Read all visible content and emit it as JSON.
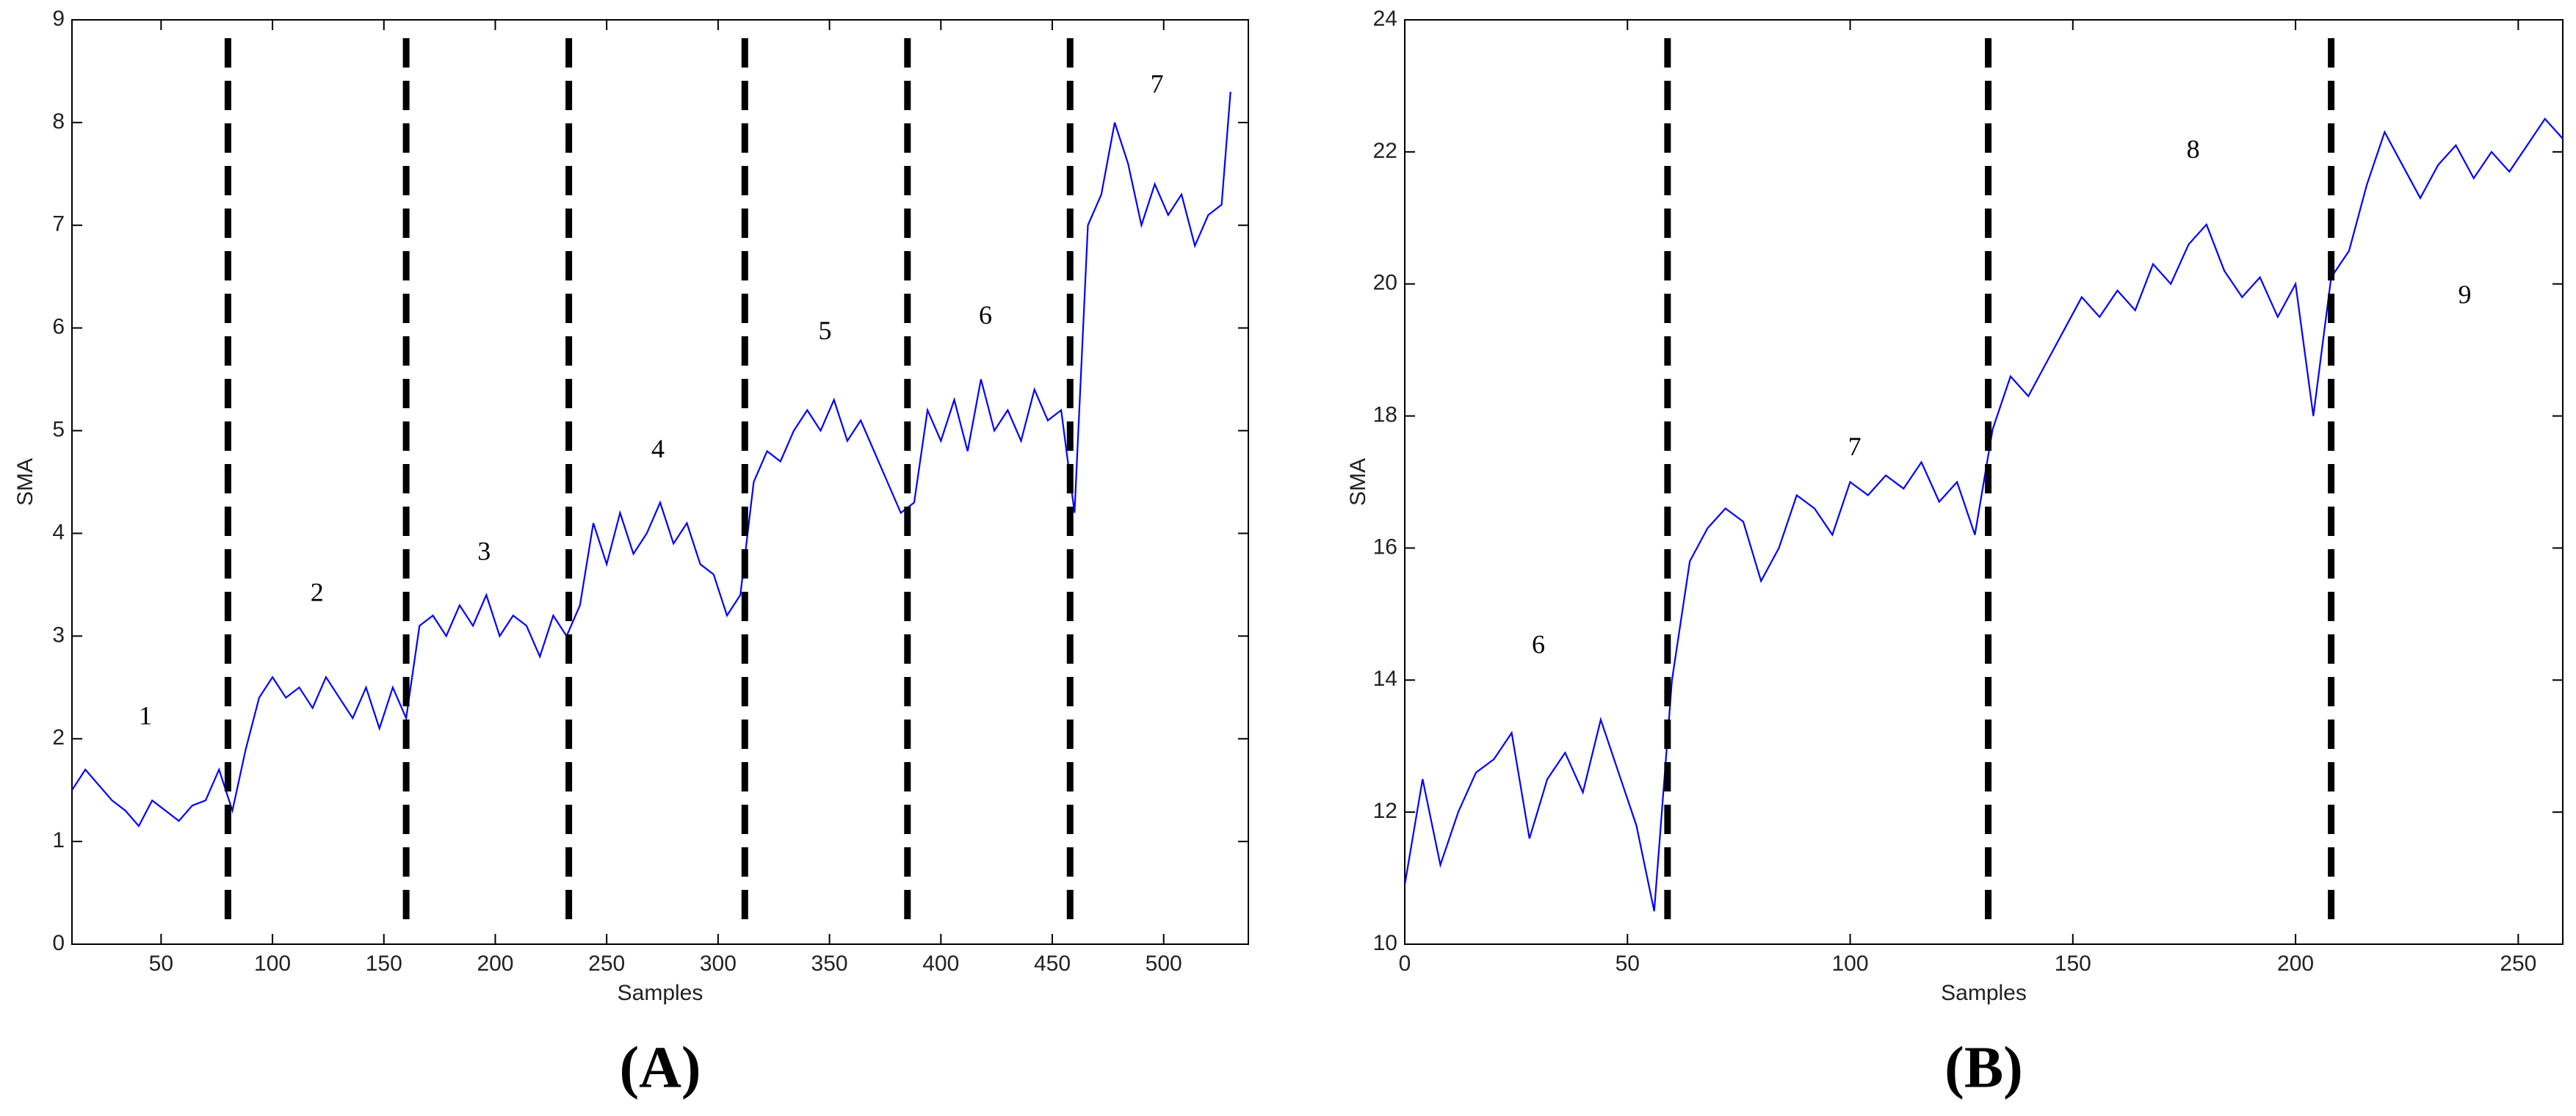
{
  "chart_data": [
    {
      "type": "line",
      "caption": "(A)",
      "xlabel": "Samples",
      "ylabel": "SMA",
      "color": "#0000ff",
      "xlim": [
        10,
        538
      ],
      "ylim": [
        0,
        9
      ],
      "xticks": [
        50,
        100,
        150,
        200,
        250,
        300,
        350,
        400,
        450,
        500
      ],
      "yticks": [
        0,
        1,
        2,
        3,
        4,
        5,
        6,
        7,
        8,
        9
      ],
      "boundaries": [
        80,
        160,
        233,
        312,
        385,
        458
      ],
      "annotations": [
        {
          "text": "1",
          "x": 43,
          "y": 2.2
        },
        {
          "text": "2",
          "x": 120,
          "y": 3.4
        },
        {
          "text": "3",
          "x": 195,
          "y": 3.8
        },
        {
          "text": "4",
          "x": 273,
          "y": 4.8
        },
        {
          "text": "5",
          "x": 348,
          "y": 5.95
        },
        {
          "text": "6",
          "x": 420,
          "y": 6.1
        },
        {
          "text": "7",
          "x": 497,
          "y": 8.35
        }
      ],
      "x": [
        10,
        16,
        22,
        28,
        34,
        40,
        46,
        52,
        58,
        64,
        70,
        76,
        82,
        88,
        94,
        100,
        106,
        112,
        118,
        124,
        130,
        136,
        142,
        148,
        154,
        160,
        166,
        172,
        178,
        184,
        190,
        196,
        202,
        208,
        214,
        220,
        226,
        232,
        238,
        244,
        250,
        256,
        262,
        268,
        274,
        280,
        286,
        292,
        298,
        304,
        310,
        316,
        322,
        328,
        334,
        340,
        346,
        352,
        358,
        364,
        370,
        376,
        382,
        388,
        394,
        400,
        406,
        412,
        418,
        424,
        430,
        436,
        442,
        448,
        454,
        460,
        466,
        472,
        478,
        484,
        490,
        496,
        502,
        508,
        514,
        520,
        526,
        530
      ],
      "values": [
        1.5,
        1.7,
        1.55,
        1.4,
        1.3,
        1.15,
        1.4,
        1.3,
        1.2,
        1.35,
        1.4,
        1.7,
        1.3,
        1.9,
        2.4,
        2.6,
        2.4,
        2.5,
        2.3,
        2.6,
        2.4,
        2.2,
        2.5,
        2.1,
        2.5,
        2.2,
        3.1,
        3.2,
        3.0,
        3.3,
        3.1,
        3.4,
        3.0,
        3.2,
        3.1,
        2.8,
        3.2,
        3.0,
        3.3,
        4.1,
        3.7,
        4.2,
        3.8,
        4.0,
        4.3,
        3.9,
        4.1,
        3.7,
        3.6,
        3.2,
        3.4,
        4.5,
        4.8,
        4.7,
        5.0,
        5.2,
        5.0,
        5.3,
        4.9,
        5.1,
        4.8,
        4.5,
        4.2,
        4.3,
        5.2,
        4.9,
        5.3,
        4.8,
        5.5,
        5.0,
        5.2,
        4.9,
        5.4,
        5.1,
        5.2,
        4.2,
        7.0,
        7.3,
        8.0,
        7.6,
        7.0,
        7.4,
        7.1,
        7.3,
        6.8,
        7.1,
        7.2,
        8.3
      ]
    },
    {
      "type": "line",
      "caption": "(B)",
      "xlabel": "Samples",
      "ylabel": "SMA",
      "color": "#0000ff",
      "xlim": [
        0,
        260
      ],
      "ylim": [
        10,
        24
      ],
      "xticks": [
        0,
        50,
        100,
        150,
        200,
        250
      ],
      "yticks": [
        10,
        12,
        14,
        16,
        18,
        20,
        22,
        24
      ],
      "boundaries": [
        59,
        131,
        208
      ],
      "annotations": [
        {
          "text": "6",
          "x": 30,
          "y": 14.5
        },
        {
          "text": "7",
          "x": 101,
          "y": 17.5
        },
        {
          "text": "8",
          "x": 177,
          "y": 22.0
        },
        {
          "text": "9",
          "x": 238,
          "y": 19.8
        }
      ],
      "x": [
        0,
        4,
        8,
        12,
        16,
        20,
        24,
        28,
        32,
        36,
        40,
        44,
        48,
        52,
        56,
        60,
        64,
        68,
        72,
        76,
        80,
        84,
        88,
        92,
        96,
        100,
        104,
        108,
        112,
        116,
        120,
        124,
        128,
        132,
        136,
        140,
        144,
        148,
        152,
        156,
        160,
        164,
        168,
        172,
        176,
        180,
        184,
        188,
        192,
        196,
        200,
        204,
        208,
        212,
        216,
        220,
        224,
        228,
        232,
        236,
        240,
        244,
        248,
        252,
        256,
        260
      ],
      "values": [
        10.9,
        12.5,
        11.2,
        12.0,
        12.6,
        12.8,
        13.2,
        11.6,
        12.5,
        12.9,
        12.3,
        13.4,
        12.6,
        11.8,
        10.5,
        14.0,
        15.8,
        16.3,
        16.6,
        16.4,
        15.5,
        16.0,
        16.8,
        16.6,
        16.2,
        17.0,
        16.8,
        17.1,
        16.9,
        17.3,
        16.7,
        17.0,
        16.2,
        17.8,
        18.6,
        18.3,
        18.8,
        19.3,
        19.8,
        19.5,
        19.9,
        19.6,
        20.3,
        20.0,
        20.6,
        20.9,
        20.2,
        19.8,
        20.1,
        19.5,
        20.0,
        18.0,
        20.1,
        20.5,
        21.5,
        22.3,
        21.8,
        21.3,
        21.8,
        22.1,
        21.6,
        22.0,
        21.7,
        22.1,
        22.5,
        22.2
      ]
    }
  ]
}
